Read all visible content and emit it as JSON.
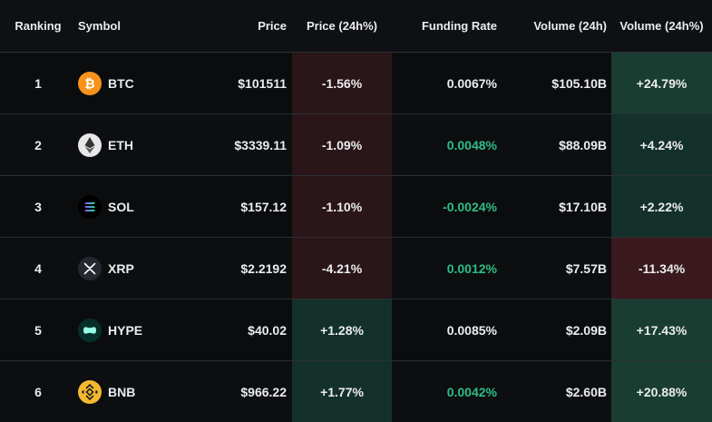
{
  "header": {
    "ranking": "Ranking",
    "symbol": "Symbol",
    "price": "Price",
    "price_change": "Price (24h%)",
    "funding_rate": "Funding Rate",
    "volume": "Volume (24h)",
    "volume_change": "Volume (24h%)"
  },
  "colors": {
    "background": "#0b0c0e",
    "positive": "#2ebd85",
    "text": "#eaecef"
  },
  "rows": [
    {
      "rank": "1",
      "symbol": "BTC",
      "icon": "btc-icon",
      "price": "$101511",
      "price_change": "-1.56%",
      "funding_rate": "0.0067%",
      "volume": "$105.10B",
      "volume_change": "+24.79%"
    },
    {
      "rank": "2",
      "symbol": "ETH",
      "icon": "eth-icon",
      "price": "$3339.11",
      "price_change": "-1.09%",
      "funding_rate": "0.0048%",
      "volume": "$88.09B",
      "volume_change": "+4.24%"
    },
    {
      "rank": "3",
      "symbol": "SOL",
      "icon": "sol-icon",
      "price": "$157.12",
      "price_change": "-1.10%",
      "funding_rate": "-0.0024%",
      "volume": "$17.10B",
      "volume_change": "+2.22%"
    },
    {
      "rank": "4",
      "symbol": "XRP",
      "icon": "xrp-icon",
      "price": "$2.2192",
      "price_change": "-4.21%",
      "funding_rate": "0.0012%",
      "volume": "$7.57B",
      "volume_change": "-11.34%"
    },
    {
      "rank": "5",
      "symbol": "HYPE",
      "icon": "hype-icon",
      "price": "$40.02",
      "price_change": "+1.28%",
      "funding_rate": "0.0085%",
      "volume": "$2.09B",
      "volume_change": "+17.43%"
    },
    {
      "rank": "6",
      "symbol": "BNB",
      "icon": "bnb-icon",
      "price": "$966.22",
      "price_change": "+1.77%",
      "funding_rate": "0.0042%",
      "volume": "$2.60B",
      "volume_change": "+20.88%"
    }
  ]
}
